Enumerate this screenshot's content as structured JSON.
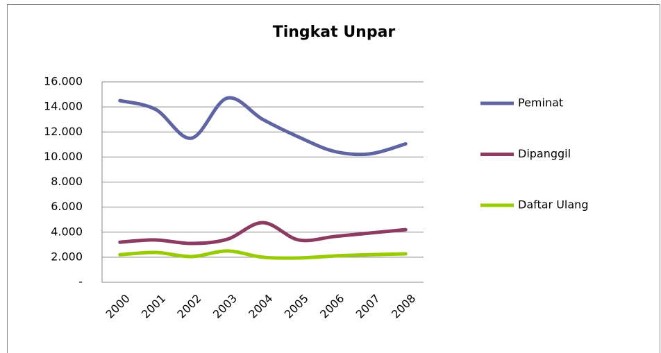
{
  "chart_data": {
    "type": "line",
    "title": "Tingkat Unpar",
    "categories": [
      "2000",
      "2001",
      "2002",
      "2003",
      "2004",
      "2005",
      "2006",
      "2007",
      "2008"
    ],
    "series": [
      {
        "name": "Peminat",
        "color": "#5f64a3",
        "values": [
          14500,
          13800,
          11500,
          14700,
          13000,
          11600,
          10450,
          10250,
          11050
        ]
      },
      {
        "name": "Dipanggil",
        "color": "#8e3b64",
        "values": [
          3200,
          3380,
          3100,
          3430,
          4760,
          3380,
          3650,
          3930,
          4200
        ]
      },
      {
        "name": "Daftar Ulang",
        "color": "#99cc00",
        "values": [
          2200,
          2380,
          2050,
          2500,
          2000,
          1940,
          2100,
          2200,
          2270
        ]
      }
    ],
    "ylim": [
      0,
      16000
    ],
    "yticks": [
      {
        "value": 0,
        "label": "-"
      },
      {
        "value": 2000,
        "label": "2.000"
      },
      {
        "value": 4000,
        "label": "4.000"
      },
      {
        "value": 6000,
        "label": "6.000"
      },
      {
        "value": 8000,
        "label": "8.000"
      },
      {
        "value": 10000,
        "label": "10.000"
      },
      {
        "value": 12000,
        "label": "12.000"
      },
      {
        "value": 14000,
        "label": "14.000"
      },
      {
        "value": 16000,
        "label": "16.000"
      }
    ],
    "grid": true,
    "legend": "right",
    "smooth": true
  }
}
